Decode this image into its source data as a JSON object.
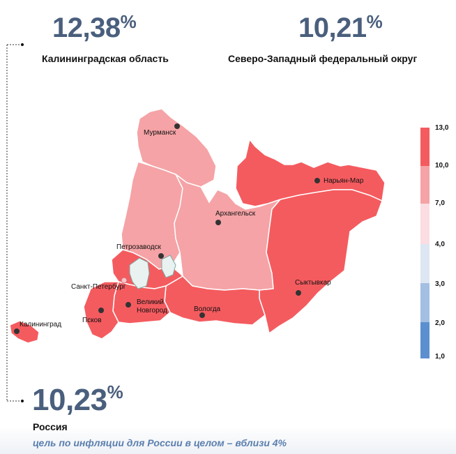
{
  "stats": {
    "kaliningrad": {
      "value": "12,38",
      "pct": "%",
      "label": "Калининградская область"
    },
    "nwfd": {
      "value": "10,21",
      "pct": "%",
      "label": "Северо-Западный федеральный округ"
    },
    "russia": {
      "value": "10,23",
      "pct": "%",
      "label": "Россия"
    }
  },
  "target_note": "цель по инфляции для России в целом – вблизи 4%",
  "cities": {
    "murmansk": "Мурманск",
    "naryan_mar": "Нарьян-Мар",
    "arkhangelsk": "Архангельск",
    "petrozavodsk": "Петрозаводск",
    "syktyvkar": "Сыктывкар",
    "spb": "Санкт-Петербург",
    "vnovgorod_1": "Великий",
    "vnovgorod_2": "Новгород",
    "vologda": "Вологда",
    "pskov": "Псков",
    "kaliningrad": "Калининград"
  },
  "legend": {
    "ticks": [
      "13,0",
      "10,0",
      "7,0",
      "4,0",
      "3,0",
      "2,0",
      "1,0"
    ],
    "colors": [
      "#f45b5f",
      "#f5a3a6",
      "#fbdde2",
      "#dde6f3",
      "#a3bfe2",
      "#5b8fd0"
    ]
  },
  "region_colors": {
    "high": "#f45b5f",
    "mid": "#f5a3a6"
  }
}
